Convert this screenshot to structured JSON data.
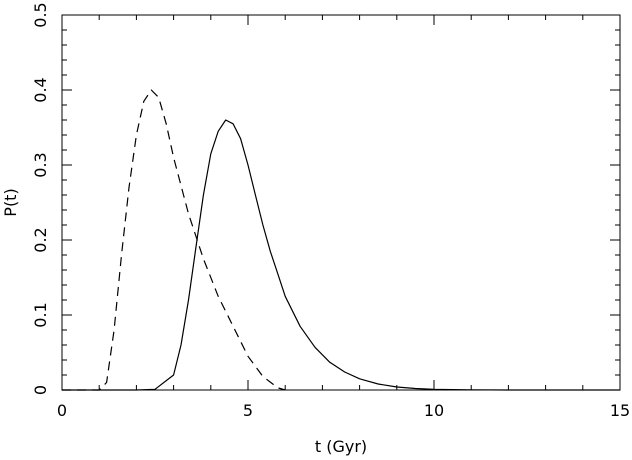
{
  "chart_data": {
    "type": "line",
    "xlabel": "t (Gyr)",
    "ylabel": "P(t)",
    "xlim": [
      0,
      15
    ],
    "ylim": [
      0,
      0.5
    ],
    "xticks": [
      0,
      5,
      10,
      15
    ],
    "xtick_labels": [
      "0",
      "5",
      "10",
      "15"
    ],
    "yticks": [
      0,
      0.1,
      0.2,
      0.3,
      0.4,
      0.5
    ],
    "ytick_labels": [
      "0",
      "0.1",
      "0.2",
      "0.3",
      "0.4",
      "0.5"
    ],
    "grid": false,
    "series": [
      {
        "style": "dashed",
        "x": [
          0,
          1.0,
          1.2,
          1.4,
          1.6,
          1.8,
          2.0,
          2.2,
          2.4,
          2.6,
          2.8,
          3.0,
          3.4,
          3.8,
          4.2,
          4.6,
          5.0,
          5.4,
          5.8,
          6.0
        ],
        "y": [
          0,
          0.0,
          0.01,
          0.08,
          0.18,
          0.27,
          0.34,
          0.385,
          0.4,
          0.39,
          0.355,
          0.31,
          0.235,
          0.175,
          0.125,
          0.085,
          0.045,
          0.018,
          0.003,
          0.0
        ]
      },
      {
        "style": "solid",
        "x": [
          0,
          2.0,
          2.5,
          3.0,
          3.2,
          3.4,
          3.6,
          3.8,
          4.0,
          4.2,
          4.4,
          4.6,
          4.8,
          5.0,
          5.2,
          5.4,
          5.6,
          5.8,
          6.0,
          6.4,
          6.8,
          7.2,
          7.6,
          8.0,
          8.5,
          9.0,
          9.5,
          10.0,
          11.0,
          12.0,
          15.0
        ],
        "y": [
          0,
          0.0,
          0.001,
          0.02,
          0.06,
          0.12,
          0.19,
          0.26,
          0.315,
          0.345,
          0.36,
          0.355,
          0.335,
          0.3,
          0.26,
          0.22,
          0.185,
          0.155,
          0.125,
          0.085,
          0.057,
          0.037,
          0.024,
          0.015,
          0.008,
          0.004,
          0.002,
          0.001,
          0.0003,
          0.0,
          0.0
        ]
      }
    ]
  }
}
